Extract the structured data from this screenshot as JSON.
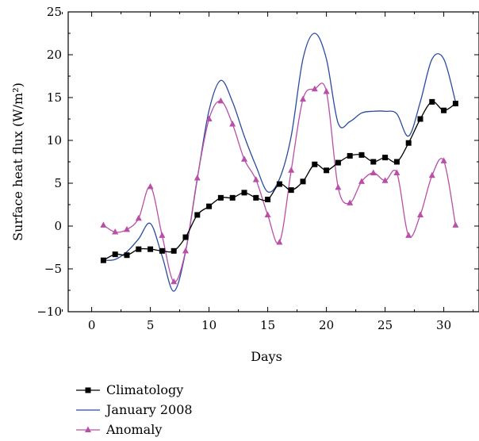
{
  "chart_data": {
    "type": "line",
    "xlabel": "Days",
    "ylabel": "Surface heat flux (W/m²)",
    "xlim": [
      -2,
      33
    ],
    "ylim": [
      -10,
      25
    ],
    "xticks": [
      0,
      5,
      10,
      15,
      20,
      25,
      30
    ],
    "yticks": [
      -10,
      -5,
      0,
      5,
      10,
      15,
      20,
      25
    ],
    "ytick_labels": [
      "−10",
      "−5",
      "0",
      "5",
      "10",
      "15",
      "20",
      "25"
    ],
    "grid": false,
    "legend_position": "bottom-left, below plot",
    "x": [
      1,
      2,
      3,
      4,
      5,
      6,
      7,
      8,
      9,
      10,
      11,
      12,
      13,
      14,
      15,
      16,
      17,
      18,
      19,
      20,
      21,
      22,
      23,
      24,
      25,
      26,
      27,
      28,
      29,
      30,
      31
    ],
    "series": [
      {
        "name": "Climatology",
        "color": "#000000",
        "marker": "square",
        "values": [
          -4.0,
          -3.3,
          -3.4,
          -2.7,
          -2.7,
          -2.9,
          -2.9,
          -1.3,
          1.3,
          2.3,
          3.3,
          3.3,
          3.9,
          3.3,
          3.1,
          4.9,
          4.2,
          5.2,
          7.2,
          6.5,
          7.4,
          8.2,
          8.3,
          7.5,
          8.0,
          7.5,
          9.7,
          12.5,
          14.5,
          13.5,
          14.3
        ]
      },
      {
        "name": "January 2008",
        "color": "#2b4ba0",
        "marker": "none",
        "values": [
          -4.0,
          -3.9,
          -3.0,
          -1.5,
          0.3,
          -3.5,
          -7.6,
          -3.0,
          5.5,
          13.5,
          17.0,
          14.5,
          10.5,
          7.0,
          4.0,
          5.5,
          10.5,
          19.5,
          22.5,
          19.5,
          12.0,
          12.2,
          13.2,
          13.4,
          13.4,
          13.1,
          10.5,
          14.5,
          19.5,
          19.5,
          14.5
        ]
      },
      {
        "name": "Anomaly",
        "color": "#b94fa6",
        "marker": "triangle",
        "values": [
          0.1,
          -0.7,
          -0.4,
          0.9,
          4.6,
          -1.1,
          -6.5,
          -2.9,
          5.6,
          12.5,
          14.6,
          11.9,
          7.8,
          5.4,
          1.3,
          -1.9,
          6.5,
          14.8,
          16.0,
          15.7,
          4.5,
          2.7,
          5.2,
          6.2,
          5.3,
          6.2,
          -1.1,
          1.3,
          5.9,
          7.6,
          0.1
        ]
      }
    ]
  }
}
